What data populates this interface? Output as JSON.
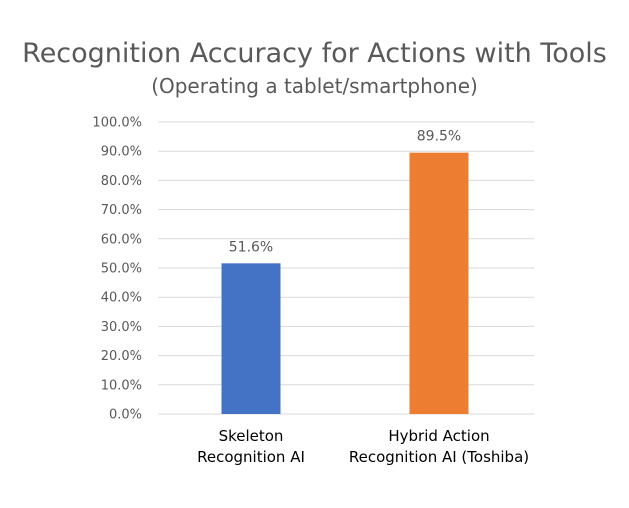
{
  "chart_data": {
    "type": "bar",
    "title": "Recognition Accuracy for Actions with Tools",
    "subtitle": "(Operating a tablet/smartphone)",
    "categories": [
      [
        "Skeleton",
        "Recognition AI"
      ],
      [
        "Hybrid Action",
        "Recognition AI (Toshiba)"
      ]
    ],
    "values": [
      51.6,
      89.5
    ],
    "data_labels": [
      "51.6%",
      "89.5%"
    ],
    "bar_colors": [
      "#4472C4",
      "#ED7D31"
    ],
    "ylim": [
      0,
      100
    ],
    "y_ticks": [
      0,
      10,
      20,
      30,
      40,
      50,
      60,
      70,
      80,
      90,
      100
    ],
    "y_tick_labels": [
      "0.0%",
      "10.0%",
      "20.0%",
      "30.0%",
      "40.0%",
      "50.0%",
      "60.0%",
      "70.0%",
      "80.0%",
      "90.0%",
      "100.0%"
    ],
    "grid": true,
    "grid_color": "#D9D9D9",
    "text_color": "#595959",
    "xlabel": "",
    "ylabel": ""
  }
}
